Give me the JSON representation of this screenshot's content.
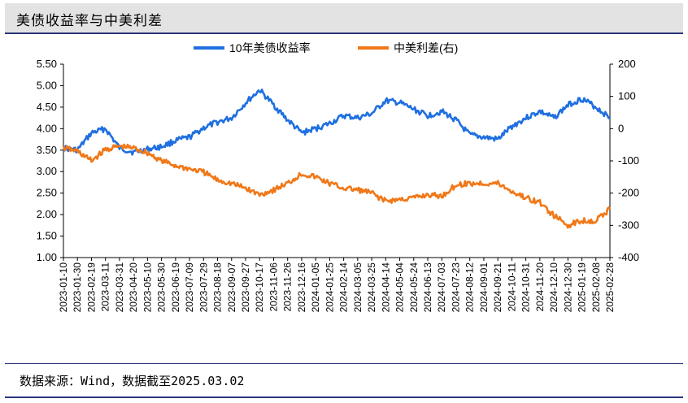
{
  "title": "美债收益率与中美利差",
  "source": "数据来源：Wind，数据截至2025.03.02",
  "chart_data": {
    "type": "line",
    "legend_position": "top-center",
    "grid": false,
    "x_tick_labels": [
      "2023-01-10",
      "2023-01-30",
      "2023-02-19",
      "2023-03-11",
      "2023-03-31",
      "2023-04-20",
      "2023-05-10",
      "2023-05-30",
      "2023-06-19",
      "2023-07-09",
      "2023-07-29",
      "2023-08-18",
      "2023-09-07",
      "2023-09-27",
      "2023-10-17",
      "2023-11-06",
      "2023-11-26",
      "2023-12-16",
      "2024-01-05",
      "2024-01-25",
      "2024-02-14",
      "2024-03-05",
      "2024-03-25",
      "2024-04-14",
      "2024-05-04",
      "2024-05-24",
      "2024-06-13",
      "2024-07-03",
      "2024-07-23",
      "2024-08-12",
      "2024-09-01",
      "2024-09-21",
      "2024-10-11",
      "2024-10-31",
      "2024-11-20",
      "2024-12-10",
      "2024-12-30",
      "2025-01-19",
      "2025-02-08",
      "2025-02-28"
    ],
    "y_left": {
      "ticks": [
        "1.00",
        "1.50",
        "2.00",
        "2.50",
        "3.00",
        "3.50",
        "4.00",
        "4.50",
        "5.00",
        "5.50"
      ],
      "range": [
        1.0,
        5.5
      ]
    },
    "y_right": {
      "ticks": [
        "-400",
        "-300",
        "-200",
        "-100",
        "0",
        "100",
        "200"
      ],
      "range": [
        -400,
        200
      ]
    },
    "series": [
      {
        "name": "10年美债收益率",
        "axis": "left",
        "color": "#1f6fe0",
        "values": [
          3.55,
          3.5,
          3.9,
          4.0,
          3.55,
          3.45,
          3.52,
          3.58,
          3.72,
          3.8,
          4.02,
          4.15,
          4.25,
          4.6,
          4.9,
          4.55,
          4.2,
          3.9,
          4.0,
          4.12,
          4.3,
          4.25,
          4.35,
          4.65,
          4.6,
          4.45,
          4.3,
          4.4,
          4.2,
          3.85,
          3.8,
          3.75,
          4.05,
          4.25,
          4.4,
          4.25,
          4.55,
          4.7,
          4.5,
          4.25
        ]
      },
      {
        "name": "中美利差(右)",
        "axis": "right",
        "color": "#f07818",
        "values": [
          -60,
          -70,
          -100,
          -65,
          -55,
          -60,
          -75,
          -100,
          -115,
          -125,
          -135,
          -160,
          -170,
          -185,
          -205,
          -190,
          -170,
          -140,
          -150,
          -170,
          -185,
          -190,
          -200,
          -225,
          -220,
          -215,
          -205,
          -210,
          -175,
          -170,
          -170,
          -170,
          -195,
          -215,
          -230,
          -270,
          -300,
          -285,
          -285,
          -250
        ]
      }
    ]
  }
}
